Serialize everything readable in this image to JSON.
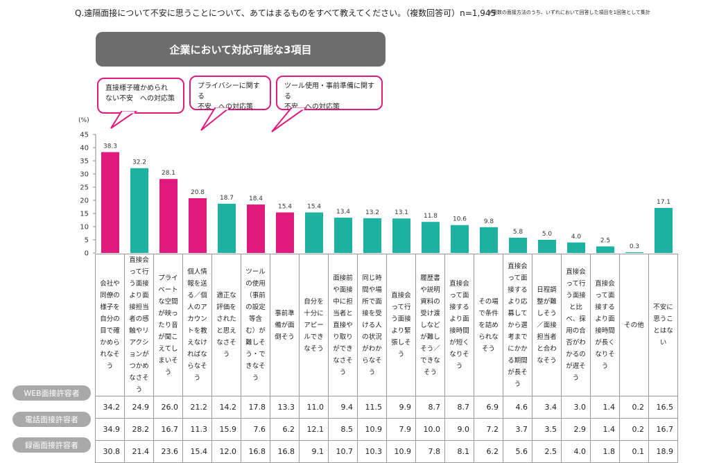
{
  "header": {
    "question": "Q.遠隔面接について不安に思うことについて、あてはまるものをすべて教えてください。（複数回答可）n=1,945",
    "footnote": "※複数の面接方法のうち、いずれにおいて回答した項目を1回答として集計"
  },
  "banner": {
    "title": "企業において対応可能な3項目"
  },
  "callouts": [
    {
      "text": "直接様子確かめられ\nない不安　への対応策"
    },
    {
      "text": "プライバシーに関する\n不安　への対応策"
    },
    {
      "text": "ツール使用・事前準備に関する\n不安　への対応策"
    }
  ],
  "colors": {
    "highlight": "#e0197d",
    "normal": "#1db3a0",
    "banner": "#6d6d6d",
    "row_label": "#a9a9a9"
  },
  "chart_data": {
    "type": "bar",
    "unit_label": "(%)",
    "ylim": [
      0,
      45
    ],
    "yticks": [
      0,
      5,
      10,
      15,
      20,
      25,
      30,
      35,
      40,
      45
    ],
    "categories": [
      "会社や同僚の様子を自分の目で確かめられなそう",
      "直接会って行う面接より面接担当者の感触やリアクションがつかめなさそう",
      "プライベートな空間が映ったり音が聞こえてしまいそう",
      "個人情報を送る／個人のアカウントを教えなければならなそう",
      "適正な評価をされたと思えなさそう",
      "ツールの使用（事前の設定等含む）が難しそう・できなそう",
      "事前準備が面倒そう",
      "自分を十分にアピールできなそう",
      "面接前や面接中に担当者と直接やり取りができなさそう",
      "同じ時間や場所で面接を受ける人の状況がわからなそう",
      "直接会って行う面接より緊張しそう",
      "履歴書や説明資料の受け渡しなどが難しそう／できなそう",
      "直接会って面接するより面接時間が短くなりそう",
      "その場で条件を詰められなそう",
      "直接会って面接するより応募してから選考までにかかる期間が長そう",
      "日程調整が難しそう／面接担当者と合わなそう",
      "直接会って行う面接と比べ、採用の合否がわかるのが遅そう",
      "直接会って面接するより面接時間が長くなりそう",
      "その他",
      "不安に思うことはない"
    ],
    "values": [
      38.3,
      32.2,
      28.1,
      20.8,
      18.7,
      18.4,
      15.4,
      15.4,
      13.4,
      13.2,
      13.1,
      11.8,
      10.6,
      9.8,
      5.8,
      5.0,
      4.0,
      2.5,
      0.3,
      17.1
    ],
    "value_labels": [
      "38.3",
      "32.2",
      "28.1",
      "20.8",
      "18.7",
      "18.4",
      "15.4",
      "15.4",
      "13.4",
      "13.2",
      "13.1",
      "11.8",
      "10.6",
      "9.8",
      "5.8",
      "5.0",
      "4.0",
      "2.5",
      "0.3",
      "17.1"
    ],
    "highlight": [
      true,
      false,
      true,
      true,
      false,
      true,
      true,
      false,
      false,
      false,
      false,
      false,
      false,
      false,
      false,
      false,
      false,
      false,
      false,
      false
    ],
    "table": [
      {
        "name": "WEB面接許容者",
        "values": [
          "34.2",
          "24.9",
          "26.0",
          "21.2",
          "14.2",
          "17.8",
          "13.3",
          "11.0",
          "9.4",
          "11.5",
          "9.9",
          "8.7",
          "8.7",
          "6.9",
          "4.6",
          "3.4",
          "3.0",
          "1.4",
          "0.2",
          "16.5"
        ]
      },
      {
        "name": "電話面接許容者",
        "values": [
          "34.9",
          "28.2",
          "16.7",
          "11.3",
          "15.9",
          "7.6",
          "6.2",
          "12.1",
          "8.5",
          "10.9",
          "7.9",
          "10.0",
          "9.0",
          "7.2",
          "3.7",
          "3.5",
          "2.9",
          "1.4",
          "0.2",
          "16.7"
        ]
      },
      {
        "name": "録画面接許容者",
        "values": [
          "30.8",
          "21.4",
          "23.6",
          "15.4",
          "12.0",
          "16.8",
          "16.8",
          "9.1",
          "10.7",
          "10.3",
          "10.9",
          "7.8",
          "8.1",
          "6.2",
          "5.6",
          "2.5",
          "4.0",
          "1.8",
          "0.1",
          "18.9"
        ]
      }
    ]
  }
}
